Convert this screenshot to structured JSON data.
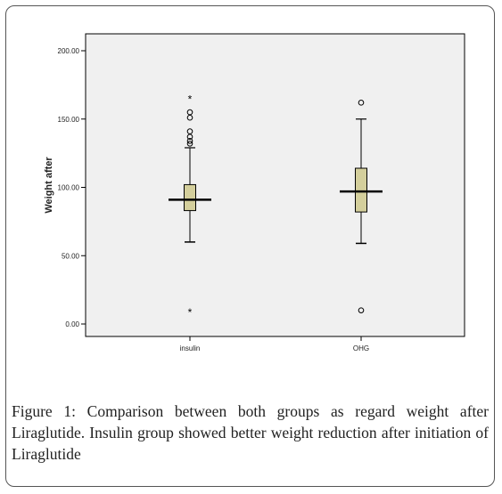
{
  "chart_data": {
    "type": "box",
    "ylabel": "Weight after",
    "xlabel": "",
    "ylim": [
      0,
      200
    ],
    "yticks": [
      0,
      50,
      100,
      150,
      200
    ],
    "ytick_labels": [
      "0.00",
      "50.00",
      "100.00",
      "150.00",
      "200.00"
    ],
    "categories": [
      "insulin",
      "OHG"
    ],
    "boxes": [
      {
        "name": "insulin",
        "whisker_low": 60,
        "q1": 83,
        "median": 91,
        "q3": 102,
        "whisker_high": 129,
        "outliers": [
          132,
          134,
          137,
          141,
          151,
          155
        ],
        "extremes": [
          165,
          9
        ]
      },
      {
        "name": "OHG",
        "whisker_low": 59,
        "q1": 82,
        "median": 97,
        "q3": 114,
        "whisker_high": 150,
        "outliers": [
          162,
          10
        ],
        "extremes": []
      }
    ],
    "colors": {
      "box_fill": "#d4cf9c",
      "plot_bg": "#f0f0f0"
    },
    "grid": false,
    "legend": "none"
  },
  "caption": {
    "label": "Figure 1:",
    "text": " Comparison between both groups as regard weight after Liraglutide. Insulin group showed better weight reduction after initiation of Liraglutide"
  }
}
